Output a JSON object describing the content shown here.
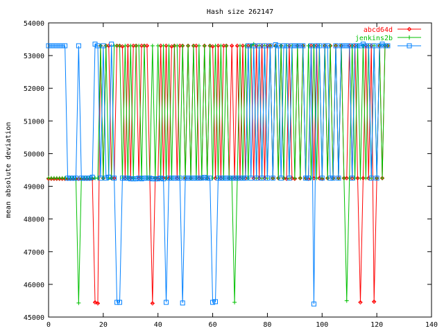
{
  "chart_data": {
    "type": "line",
    "title": "Hash size 262147",
    "xlabel": "",
    "ylabel": "mean absolute deviation",
    "xlim": [
      0,
      140
    ],
    "ylim": [
      45000,
      54000
    ],
    "xticks": [
      "0",
      "20",
      "40",
      "60",
      "80",
      "100",
      "120",
      "140"
    ],
    "yticks": [
      "45000",
      "46000",
      "47000",
      "48000",
      "49000",
      "50000",
      "51000",
      "52000",
      "53000",
      "54000"
    ],
    "grid": false,
    "legend_position": "top-right",
    "series": [
      {
        "name": "abcd64d",
        "color": "#ff0000",
        "marker": "diamond-plus",
        "values": [
          49230,
          49230,
          49230,
          49230,
          49230,
          49230,
          49230,
          49230,
          49230,
          49230,
          49230,
          49230,
          49230,
          49230,
          49230,
          49230,
          49230,
          45450,
          45420,
          53300,
          49250,
          53300,
          53300,
          49250,
          49250,
          53300,
          53300,
          53280,
          49250,
          53300,
          49250,
          53300,
          53300,
          49250,
          53300,
          53300,
          53300,
          49250,
          45420,
          49250,
          49230,
          53300,
          49250,
          53300,
          49250,
          53280,
          53300,
          49250,
          53300,
          53300,
          49250,
          53300,
          49250,
          53300,
          53300,
          49250,
          49250,
          53300,
          49250,
          53300,
          53280,
          49250,
          53300,
          49250,
          53300,
          53300,
          49250,
          53300,
          49250,
          53300,
          49250,
          53300,
          49250,
          53300,
          53300,
          49250,
          53300,
          49250,
          53300,
          49250,
          53300,
          53300,
          49250,
          53300,
          49250,
          53300,
          49250,
          49230,
          53300,
          49250,
          49230,
          53300,
          49250,
          53300,
          49250,
          49230,
          53300,
          49250,
          53300,
          49250,
          49230,
          53300,
          49250,
          53300,
          49250,
          53300,
          49250,
          53300,
          49250,
          49250,
          53300,
          49250,
          53300,
          49250,
          45450,
          49250,
          53300,
          49250,
          53300,
          45470,
          49250,
          53300,
          49250,
          53300,
          53300
        ]
      },
      {
        "name": "jenkins2b",
        "color": "#00c000",
        "marker": "plus",
        "values": [
          49250,
          49250,
          49250,
          49250,
          49250,
          49250,
          49250,
          49250,
          49250,
          49250,
          49250,
          45430,
          49250,
          49250,
          49250,
          49250,
          49250,
          49250,
          49250,
          53300,
          49250,
          53300,
          49250,
          49250,
          53300,
          53300,
          53300,
          49250,
          53300,
          49250,
          53300,
          49250,
          53300,
          53300,
          49250,
          53300,
          49250,
          49250,
          53300,
          49250,
          53300,
          49250,
          53300,
          49250,
          53300,
          49250,
          53300,
          53300,
          49250,
          53300,
          49250,
          53300,
          49250,
          53300,
          49250,
          53300,
          49250,
          53300,
          49250,
          53300,
          49250,
          53300,
          49250,
          53300,
          49250,
          53300,
          49250,
          49250,
          45450,
          49250,
          53300,
          49250,
          53300,
          49250,
          53300,
          53350,
          49250,
          53300,
          49250,
          53300,
          49250,
          53300,
          49250,
          53300,
          49250,
          53300,
          49250,
          53300,
          49250,
          53300,
          49250,
          53300,
          49250,
          53300,
          49250,
          53300,
          49250,
          53300,
          49250,
          53300,
          49250,
          53300,
          49250,
          53300,
          49250,
          53300,
          49250,
          53300,
          49250,
          45500,
          49250,
          53300,
          49250,
          53300,
          49250,
          53300,
          49250,
          53300,
          49250,
          53300,
          49250,
          53300,
          49250,
          53300,
          53300
        ]
      },
      {
        "name": "",
        "color": "#0080ff",
        "marker": "square",
        "values": [
          53300,
          53300,
          53300,
          53300,
          53300,
          53300,
          53300,
          49250,
          49250,
          49250,
          49250,
          53300,
          49250,
          49250,
          49250,
          49250,
          49280,
          53350,
          53300,
          49250,
          53300,
          49250,
          49280,
          53350,
          49250,
          45450,
          45450,
          49250,
          49250,
          49250,
          49230,
          49230,
          49230,
          49250,
          49230,
          49250,
          49250,
          49250,
          49230,
          49230,
          49230,
          49250,
          49230,
          45450,
          49250,
          49250,
          49250,
          49250,
          49250,
          45430,
          49250,
          49250,
          49250,
          49250,
          49250,
          49250,
          49250,
          49270,
          49250,
          49250,
          45450,
          45470,
          49250,
          49250,
          49250,
          49250,
          49250,
          49250,
          49250,
          49250,
          49250,
          49250,
          49250,
          53300,
          49250,
          53300,
          49250,
          53300,
          49250,
          53300,
          49250,
          53300,
          49250,
          53330,
          53300,
          49250,
          53300,
          53300,
          49250,
          53300,
          53300,
          53300,
          53300,
          53300,
          49250,
          49250,
          53300,
          45400,
          53300,
          53300,
          49250,
          53300,
          53300,
          49250,
          49250,
          53300,
          49250,
          53300,
          53300,
          53300,
          53300,
          49250,
          53300,
          53300,
          53300,
          53350,
          53300,
          53300,
          49250,
          53300,
          49250,
          53300,
          53350,
          53300,
          53300
        ]
      }
    ]
  }
}
